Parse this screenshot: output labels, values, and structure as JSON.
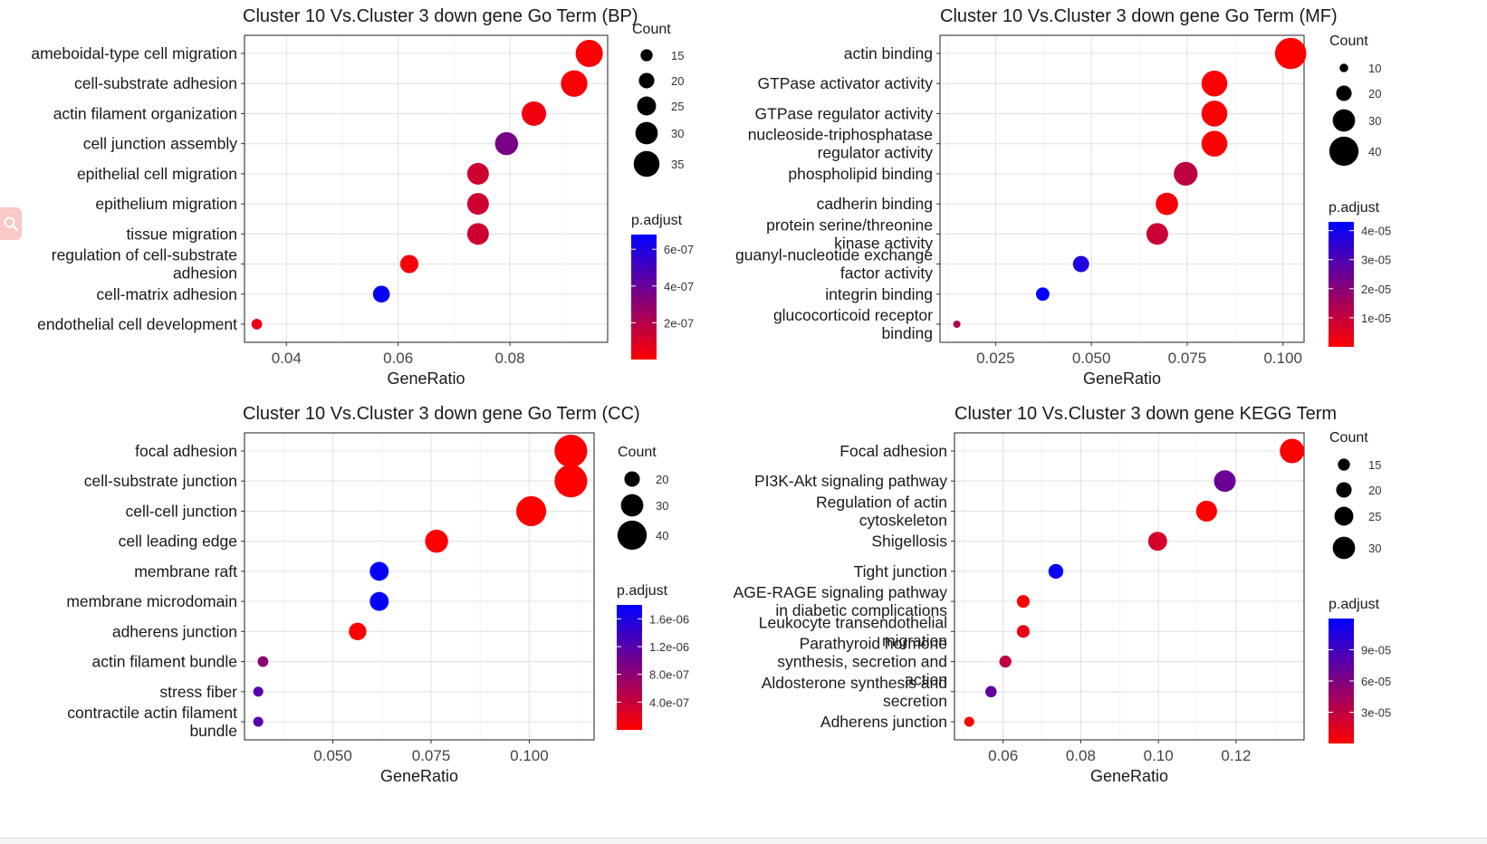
{
  "chart_data": [
    {
      "type": "scatter",
      "title": "Cluster 10 Vs.Cluster 3 down gene Go Term (BP)",
      "xlabel": "GeneRatio",
      "ylabel": "",
      "xlim": [
        0.0325,
        0.0975
      ],
      "xticks": [
        0.04,
        0.06,
        0.08
      ],
      "xtick_labels": [
        "0.04",
        "0.06",
        "0.08"
      ],
      "grid": true,
      "categories": [
        "ameboidal-type cell migration",
        "cell-substrate adhesion",
        "actin filament organization",
        "cell junction assembly",
        "epithelial cell migration",
        "epithelium migration",
        "tissue migration",
        "regulation of cell-substrate adhesion",
        "cell-matrix adhesion",
        "endothelial cell development"
      ],
      "x": [
        0.0942,
        0.0915,
        0.0843,
        0.0794,
        0.0743,
        0.0743,
        0.0743,
        0.062,
        0.057,
        0.0347
      ],
      "count": [
        37,
        36,
        33,
        31,
        29,
        29,
        29,
        24,
        22,
        13
      ],
      "p_adjust": [
        1e-08,
        2e-08,
        4e-08,
        3.6e-07,
        1.3e-07,
        1.3e-07,
        1.3e-07,
        2e-08,
        6.6e-07,
        6e-08
      ],
      "size_legend": {
        "title": "Count",
        "values": [
          15,
          20,
          25,
          30,
          35
        ]
      },
      "color_legend": {
        "title": "p.adjust",
        "min": 0,
        "max": 6.8e-07,
        "ticks": [
          2e-07,
          4e-07,
          6e-07
        ],
        "tick_labels": [
          "2e-07",
          "4e-07",
          "6e-07"
        ],
        "low_color": "#ff0000",
        "high_color": "#0000ff"
      }
    },
    {
      "type": "scatter",
      "title": "Cluster 10 Vs.Cluster 3 down gene Go Term (MF)",
      "xlabel": "GeneRatio",
      "ylabel": "",
      "xlim": [
        0.0105,
        0.1055
      ],
      "xticks": [
        0.025,
        0.05,
        0.075,
        0.1
      ],
      "xtick_labels": [
        "0.025",
        "0.050",
        "0.075",
        "0.100"
      ],
      "grid": true,
      "categories": [
        "actin binding",
        "GTPase activator activity",
        "GTPase regulator activity",
        "nucleoside-triphosphatase regulator activity",
        "phospholipid binding",
        "cadherin binding",
        "protein serine/threonine kinase activity",
        "guanyl-nucleotide exchange factor activity",
        "integrin binding",
        "glucocorticoid receptor binding"
      ],
      "x": [
        0.102,
        0.0821,
        0.0821,
        0.0821,
        0.0746,
        0.0697,
        0.0672,
        0.0473,
        0.0373,
        0.0149
      ],
      "count": [
        43,
        35,
        35,
        35,
        32,
        30,
        29,
        21,
        17,
        8
      ],
      "p_adjust": [
        2e-07,
        2e-07,
        2e-07,
        2e-07,
        1.1e-05,
        1e-06,
        9e-06,
        3.8e-05,
        4.5e-05,
        1.3e-05
      ],
      "size_legend": {
        "title": "Count",
        "values": [
          10,
          20,
          30,
          40
        ]
      },
      "color_legend": {
        "title": "p.adjust",
        "min": 0,
        "max": 4.3e-05,
        "ticks": [
          1e-05,
          2e-05,
          3e-05,
          4e-05
        ],
        "tick_labels": [
          "1e-05",
          "2e-05",
          "3e-05",
          "4e-05"
        ],
        "low_color": "#ff0000",
        "high_color": "#0000ff"
      }
    },
    {
      "type": "scatter",
      "title": "Cluster 10 Vs.Cluster 3 down gene Go Term (CC)",
      "xlabel": "GeneRatio",
      "ylabel": "",
      "xlim": [
        0.0275,
        0.1165
      ],
      "xticks": [
        0.05,
        0.075,
        0.1
      ],
      "xtick_labels": [
        "0.050",
        "0.075",
        "0.100"
      ],
      "grid": true,
      "categories": [
        "focal adhesion",
        "cell-substrate junction",
        "cell-cell junction",
        "cell leading edge",
        "membrane raft",
        "membrane microdomain",
        "adherens junction",
        "actin filament bundle",
        "stress fiber",
        "contractile actin filament bundle"
      ],
      "x": [
        0.1106,
        0.1106,
        0.1005,
        0.0764,
        0.0618,
        0.0618,
        0.0563,
        0.0322,
        0.031,
        0.031
      ],
      "count": [
        45,
        45,
        41,
        31,
        25,
        25,
        23,
        13,
        12,
        12
      ],
      "p_adjust": [
        1e-09,
        1e-09,
        1e-09,
        1e-08,
        1.75e-06,
        1.75e-06,
        1e-08,
        8e-07,
        1.2e-06,
        1.2e-06
      ],
      "size_legend": {
        "title": "Count",
        "values": [
          20,
          30,
          40
        ]
      },
      "color_legend": {
        "title": "p.adjust",
        "min": 0,
        "max": 1.8e-06,
        "ticks": [
          4e-07,
          8e-07,
          1.2e-06,
          1.6e-06
        ],
        "tick_labels": [
          "4.0e-07",
          "8.0e-07",
          "1.2e-06",
          "1.6e-06"
        ],
        "low_color": "#ff0000",
        "high_color": "#0000ff"
      }
    },
    {
      "type": "scatter",
      "title": "Cluster 10 Vs.Cluster 3 down gene KEGG Term",
      "xlabel": "GeneRatio",
      "ylabel": "",
      "xlim": [
        0.0475,
        0.1375
      ],
      "xticks": [
        0.06,
        0.08,
        0.1,
        0.12
      ],
      "xtick_labels": [
        "0.06",
        "0.08",
        "0.10",
        "0.12"
      ],
      "grid": true,
      "categories": [
        "Focal adhesion",
        "PI3K-Akt signaling pathway",
        "Regulation of actin cytoskeleton",
        "Shigellosis",
        "Tight junction",
        "AGE-RAGE signaling pathway in diabetic complications",
        "Leukocyte transendothelial migration",
        "Parathyroid hormone synthesis, secretion and action",
        "Aldosterone synthesis and secretion",
        "Adherens junction"
      ],
      "x": [
        0.1344,
        0.1171,
        0.1124,
        0.0998,
        0.0736,
        0.0652,
        0.0652,
        0.0606,
        0.0569,
        0.0513
      ],
      "count": [
        33,
        29,
        28,
        25,
        19,
        16,
        16,
        15,
        14,
        12
      ],
      "p_adjust": [
        1e-06,
        7e-05,
        1e-06,
        2e-05,
        0.000115,
        1e-06,
        1e-05,
        3e-05,
        7.5e-05,
        1e-06
      ],
      "size_legend": {
        "title": "Count",
        "values": [
          15,
          20,
          25,
          30
        ]
      },
      "color_legend": {
        "title": "p.adjust",
        "min": 0,
        "max": 0.00012,
        "ticks": [
          3e-05,
          6e-05,
          9e-05
        ],
        "tick_labels": [
          "3e-05",
          "6e-05",
          "9e-05"
        ],
        "low_color": "#ff0000",
        "high_color": "#0000ff"
      }
    }
  ],
  "ui": {
    "search_icon": "magnifier-icon",
    "search_button_color": "#f8c9c5"
  }
}
